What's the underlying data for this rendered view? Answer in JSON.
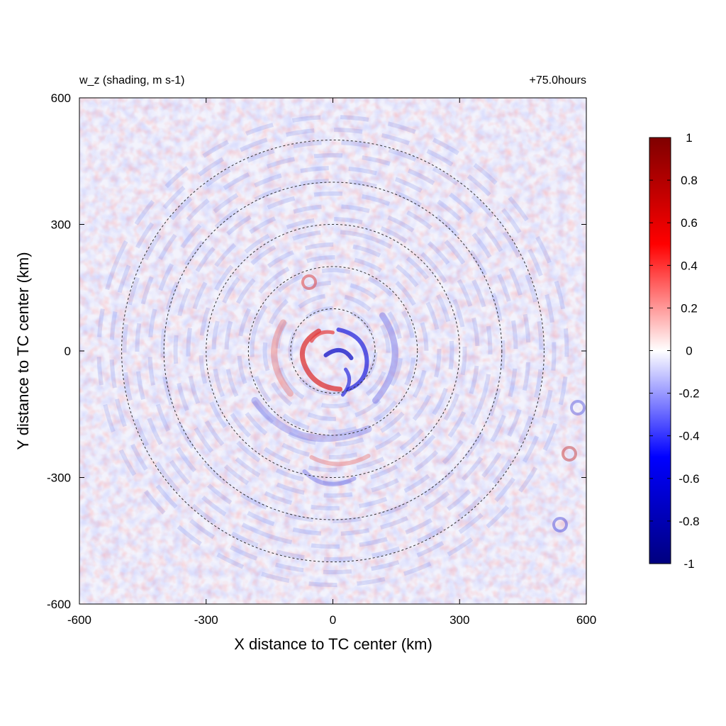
{
  "chart_data": {
    "type": "heatmap",
    "title": "w_z (shading, m s-1)",
    "subtitle": "+75.0hours",
    "xlabel": "X distance to TC center (km)",
    "ylabel": "Y distance to TC center (km)",
    "xlim": [
      -600,
      600
    ],
    "ylim": [
      -600,
      600
    ],
    "xticks": [
      -600,
      -300,
      0,
      300,
      600
    ],
    "yticks": [
      -600,
      -300,
      0,
      300,
      600
    ],
    "colorbar": {
      "min": -1,
      "max": 1,
      "ticks": [
        1,
        0.8,
        0.6,
        0.4,
        0.2,
        0,
        -0.2,
        -0.4,
        -0.6,
        -0.8,
        -1
      ],
      "colors": [
        "#00007f",
        "#0000ff",
        "#ffffff",
        "#ff0000",
        "#7f0000"
      ]
    },
    "range_rings_km": [
      100,
      200,
      300,
      400,
      500
    ],
    "grid": false
  }
}
